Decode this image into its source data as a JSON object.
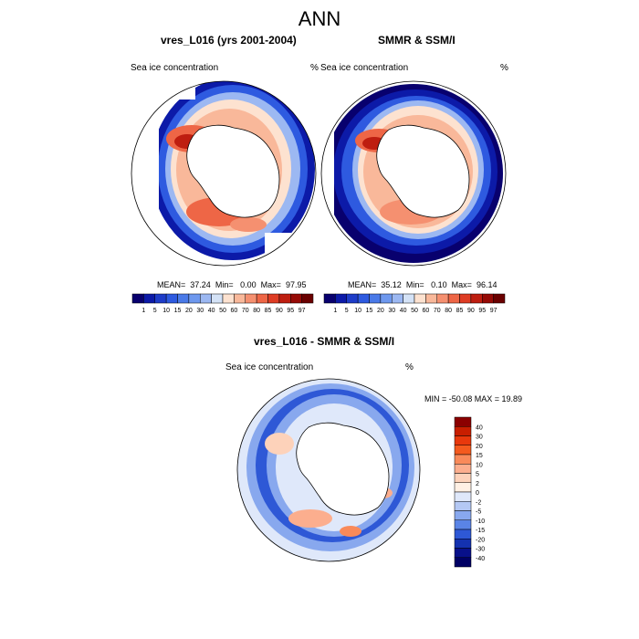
{
  "title": "ANN",
  "panels": [
    {
      "title": "vres_L016 (yrs 2001-2004)",
      "left_label": "Sea ice concentration",
      "right_label": "%",
      "stats": {
        "mean_label": "MEAN=",
        "mean": "37.24",
        "min_label": "Min=",
        "min": "0.00",
        "max_label": "Max=",
        "max": "97.95"
      }
    },
    {
      "title": "SMMR & SSM/I",
      "left_label": "Sea ice concentration",
      "right_label": "%",
      "stats": {
        "mean_label": "MEAN=",
        "mean": "35.12",
        "min_label": "Min=",
        "min": "0.10",
        "max_label": "Max=",
        "max": "96.14"
      }
    },
    {
      "title": "vres_L016 - SMMR & SSM/I",
      "left_label": "Sea ice concentration",
      "right_label": "%",
      "minmax_text": "MIN = -50.08 MAX =  19.89"
    }
  ],
  "chart_data": [
    {
      "type": "heatmap",
      "title": "vres_L016 (yrs 2001-2004)",
      "projection": "south polar stereographic",
      "variable": "Sea ice concentration",
      "units": "%",
      "mean": 37.24,
      "min": 0.0,
      "max": 97.95,
      "colorbar": {
        "ticks": [
          "1",
          "5",
          "10",
          "15",
          "20",
          "30",
          "40",
          "50",
          "60",
          "70",
          "80",
          "85",
          "90",
          "95",
          "97"
        ],
        "colors": [
          "#08006e",
          "#0c1aa8",
          "#1e3cc8",
          "#2e5ae0",
          "#4a7ae8",
          "#6e98ee",
          "#9cb8f2",
          "#d4e2f6",
          "#fde2d0",
          "#f9b89a",
          "#f59070",
          "#ee6646",
          "#de3c24",
          "#be1e10",
          "#960a06",
          "#6a0000"
        ]
      }
    },
    {
      "type": "heatmap",
      "title": "SMMR & SSM/I",
      "projection": "south polar stereographic",
      "variable": "Sea ice concentration",
      "units": "%",
      "mean": 35.12,
      "min": 0.1,
      "max": 96.14,
      "colorbar": {
        "ticks": [
          "1",
          "5",
          "10",
          "15",
          "20",
          "30",
          "40",
          "50",
          "60",
          "70",
          "80",
          "85",
          "90",
          "95",
          "97"
        ],
        "colors": [
          "#08006e",
          "#0c1aa8",
          "#1e3cc8",
          "#2e5ae0",
          "#4a7ae8",
          "#6e98ee",
          "#9cb8f2",
          "#d4e2f6",
          "#fde2d0",
          "#f9b89a",
          "#f59070",
          "#ee6646",
          "#de3c24",
          "#be1e10",
          "#960a06",
          "#6a0000"
        ]
      }
    },
    {
      "type": "heatmap",
      "title": "vres_L016 - SMMR & SSM/I",
      "projection": "south polar stereographic",
      "variable": "Sea ice concentration",
      "units": "%",
      "min": -50.08,
      "max": 19.89,
      "colorbar": {
        "ticks": [
          "40",
          "30",
          "20",
          "15",
          "10",
          "5",
          "2",
          "0",
          "-2",
          "-5",
          "-10",
          "-15",
          "-20",
          "-30",
          "-40"
        ],
        "colors": [
          "#8b0000",
          "#c81e00",
          "#e8380c",
          "#f45a1e",
          "#f98a5a",
          "#fcae8e",
          "#fdd2ba",
          "#fff0e4",
          "#dfe8fa",
          "#b4c8f4",
          "#88a8ee",
          "#5a84e6",
          "#2e58d6",
          "#1432b0",
          "#08108a",
          "#000064"
        ]
      }
    }
  ]
}
